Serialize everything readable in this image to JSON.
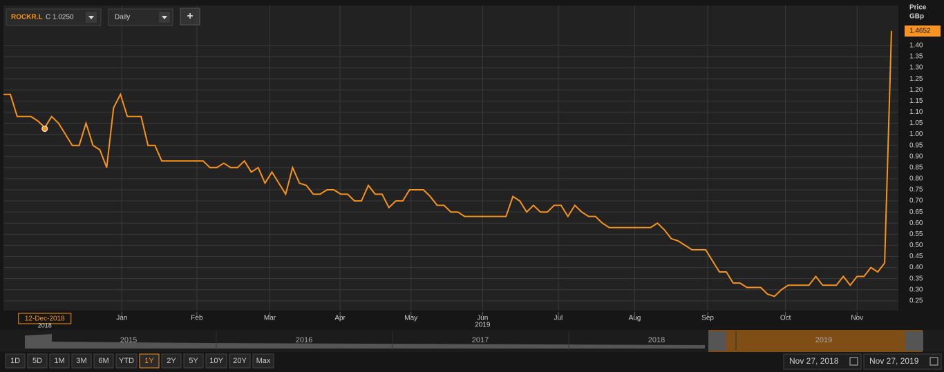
{
  "toolbar": {
    "symbol_quote": "C 1.0250",
    "interval": "Daily",
    "add_button": "+"
  },
  "chart_data": {
    "type": "line",
    "series": [
      {
        "name": "ROCKR.L",
        "color": "#f7931e",
        "values": [
          1.18,
          1.18,
          1.08,
          1.08,
          1.08,
          1.06,
          1.03,
          1.08,
          1.05,
          1.0,
          0.95,
          0.95,
          1.05,
          0.95,
          0.93,
          0.85,
          1.12,
          1.18,
          1.08,
          1.08,
          1.08,
          0.95,
          0.95,
          0.88,
          0.88,
          0.88,
          0.88,
          0.88,
          0.88,
          0.88,
          0.85,
          0.85,
          0.87,
          0.85,
          0.85,
          0.88,
          0.83,
          0.85,
          0.78,
          0.83,
          0.78,
          0.73,
          0.85,
          0.78,
          0.77,
          0.73,
          0.73,
          0.75,
          0.75,
          0.73,
          0.73,
          0.7,
          0.7,
          0.77,
          0.73,
          0.73,
          0.67,
          0.7,
          0.7,
          0.75,
          0.75,
          0.75,
          0.72,
          0.68,
          0.68,
          0.65,
          0.65,
          0.63,
          0.63,
          0.63,
          0.63,
          0.63,
          0.63,
          0.63,
          0.72,
          0.7,
          0.65,
          0.68,
          0.65,
          0.65,
          0.68,
          0.68,
          0.63,
          0.68,
          0.65,
          0.63,
          0.63,
          0.6,
          0.58,
          0.58,
          0.58,
          0.58,
          0.58,
          0.58,
          0.58,
          0.6,
          0.57,
          0.53,
          0.52,
          0.5,
          0.48,
          0.48,
          0.48,
          0.43,
          0.38,
          0.38,
          0.33,
          0.33,
          0.31,
          0.31,
          0.31,
          0.28,
          0.27,
          0.3,
          0.32,
          0.32,
          0.32,
          0.32,
          0.36,
          0.32,
          0.32,
          0.32,
          0.36,
          0.32,
          0.36,
          0.36,
          0.4,
          0.38,
          0.42,
          1.4652
        ]
      }
    ],
    "xlim": [
      0,
      130
    ],
    "xticks": [
      {
        "value": 17.2,
        "label": "Jan"
      },
      {
        "value": 28.1,
        "label": "Feb"
      },
      {
        "value": 38.7,
        "label": "Mar"
      },
      {
        "value": 48.9,
        "label": "Apr"
      },
      {
        "value": 59.2,
        "label": "May"
      },
      {
        "value": 69.6,
        "label": "Jun"
      },
      {
        "value": 80.6,
        "label": "Jul"
      },
      {
        "value": 91.7,
        "label": "Aug"
      },
      {
        "value": 102.3,
        "label": "Sep"
      },
      {
        "value": 113.6,
        "label": "Oct"
      },
      {
        "value": 124,
        "label": "Nov"
      }
    ],
    "x_year_label": "2019",
    "ylim": [
      0.206,
      1.58
    ],
    "yticks": [
      0.25,
      {
        "value": 0.3,
        "label": "0.30"
      },
      0.35,
      {
        "value": 0.4,
        "label": "0.40"
      },
      0.45,
      {
        "value": 0.5,
        "label": "0.50"
      },
      0.55,
      {
        "value": 0.6,
        "label": "0.60"
      },
      0.65,
      {
        "value": 0.7,
        "label": "0.70"
      },
      0.75,
      {
        "value": 0.8,
        "label": "0.80"
      },
      0.85,
      {
        "value": 0.9,
        "label": "0.90"
      },
      0.95,
      {
        "value": 1.0,
        "label": "1.00"
      },
      1.05,
      {
        "value": 1.1,
        "label": "1.10"
      },
      1.15,
      {
        "value": 1.2,
        "label": "1.20"
      },
      1.25,
      {
        "value": 1.3,
        "label": "1.30"
      },
      1.35,
      {
        "value": 1.4,
        "label": "1.40"
      }
    ],
    "y_label": "Price",
    "y_unit": "GBp",
    "last_price": 1.4652,
    "crosshair": {
      "x": 6,
      "value": 1.025,
      "label": "12-Dec-2018",
      "year": "2018"
    },
    "grid": true
  },
  "navigator": {
    "years": [
      "2015",
      "2016",
      "2017",
      "2018",
      "2019"
    ]
  },
  "range_buttons": [
    "1D",
    "5D",
    "1M",
    "3M",
    "6M",
    "YTD",
    "1Y",
    "2Y",
    "5Y",
    "10Y",
    "20Y",
    "Max"
  ],
  "selected_range": 6,
  "date_from": "Nov 27, 2018",
  "date_to": "Nov 27, 2019"
}
